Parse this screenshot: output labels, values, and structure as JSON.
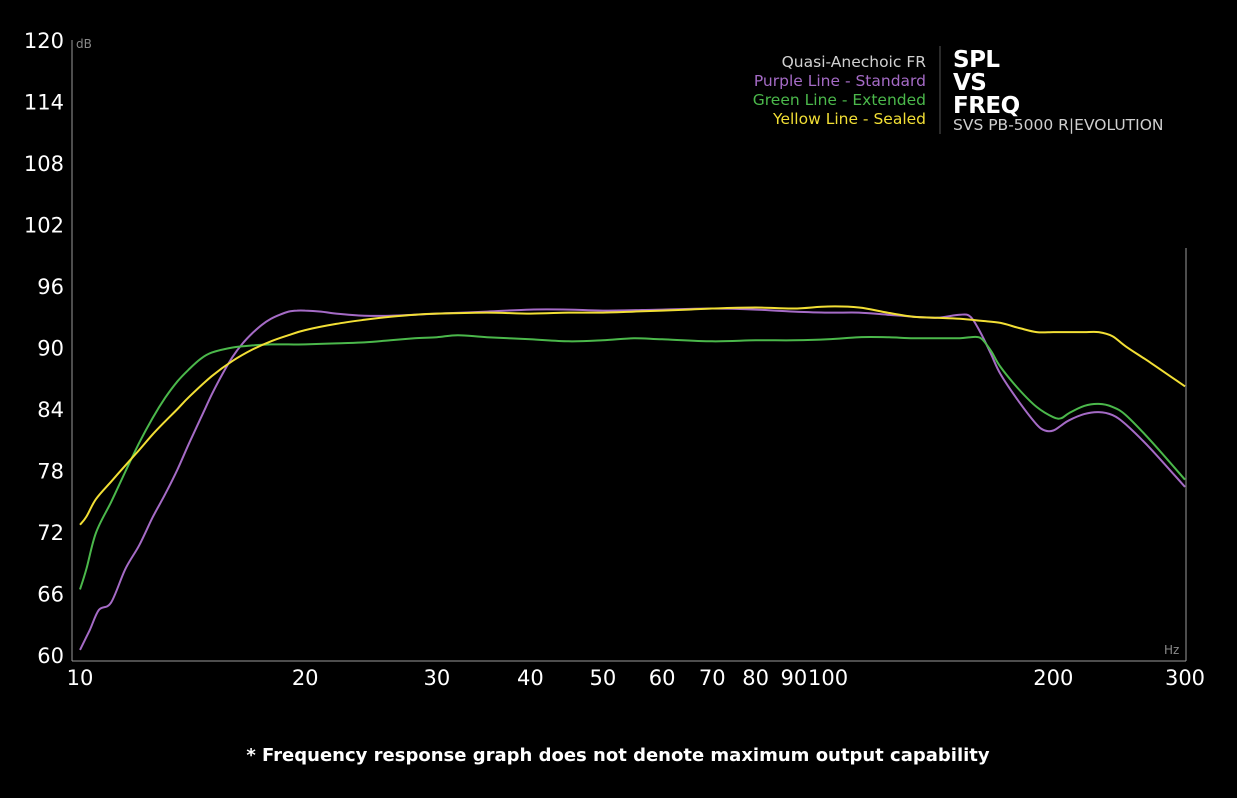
{
  "chart_data": {
    "type": "line",
    "title_lines": [
      "SPL",
      "VS",
      "FREQ"
    ],
    "subtitle": "SVS PB-5000 R|EVOLUTION",
    "legend_heading": "Quasi-Anechoic FR",
    "xlabel": "Hz",
    "ylabel": "dB",
    "x_scale": "log",
    "xlim": [
      10,
      300
    ],
    "ylim": [
      60,
      120
    ],
    "x_ticks": [
      10,
      20,
      30,
      40,
      50,
      60,
      70,
      80,
      90,
      100,
      200,
      300
    ],
    "x_tick_labels": [
      "10",
      "20",
      "30",
      "40",
      "50",
      "60",
      "70",
      "80",
      "90",
      "100",
      "200",
      "300"
    ],
    "y_ticks": [
      60,
      66,
      72,
      78,
      84,
      90,
      96,
      102,
      108,
      114,
      120
    ],
    "y_tick_labels": [
      "60",
      "66",
      "72",
      "78",
      "84",
      "90",
      "96",
      "102",
      "108",
      "114",
      "120"
    ],
    "grid": false,
    "legend_position": "top-right",
    "series": [
      {
        "name": "Purple Line - Standard",
        "color": "#a56bc6",
        "x": [
          10,
          10.3,
          10.6,
          11,
          11.5,
          12,
          12.5,
          13,
          13.5,
          14,
          14.5,
          15,
          15.5,
          16,
          16.5,
          17,
          17.5,
          18,
          18.5,
          19,
          19.5,
          20,
          21,
          22,
          24,
          26,
          28,
          30,
          35,
          40,
          45,
          50,
          60,
          70,
          80,
          90,
          100,
          110,
          120,
          130,
          140,
          150,
          155,
          160,
          165,
          170,
          180,
          190,
          195,
          200,
          205,
          210,
          220,
          230,
          240,
          250,
          270,
          300
        ],
        "values": [
          60.6,
          62.5,
          64.5,
          65.2,
          68.5,
          70.8,
          73.5,
          75.8,
          78.2,
          80.8,
          83.2,
          85.5,
          87.5,
          89.2,
          90.5,
          91.5,
          92.3,
          92.9,
          93.3,
          93.6,
          93.7,
          93.7,
          93.6,
          93.4,
          93.2,
          93.2,
          93.3,
          93.4,
          93.6,
          93.8,
          93.8,
          93.7,
          93.8,
          93.9,
          93.8,
          93.6,
          93.5,
          93.5,
          93.3,
          93.1,
          93.0,
          93.3,
          93.1,
          91.5,
          89.5,
          87.5,
          84.8,
          82.6,
          82.0,
          82.0,
          82.5,
          83.0,
          83.6,
          83.8,
          83.5,
          82.6,
          80.2,
          76.5
        ]
      },
      {
        "name": "Green Line - Extended",
        "color": "#4bb84b",
        "x": [
          10,
          10.2,
          10.5,
          11,
          11.5,
          12,
          12.5,
          13,
          13.5,
          14,
          14.5,
          15,
          16,
          17,
          18,
          19,
          20,
          22,
          24,
          26,
          28,
          30,
          32,
          35,
          40,
          45,
          50,
          55,
          60,
          70,
          80,
          90,
          100,
          110,
          120,
          130,
          140,
          150,
          155,
          160,
          165,
          170,
          180,
          190,
          200,
          205,
          210,
          220,
          230,
          240,
          250,
          270,
          300
        ],
        "values": [
          66.5,
          68.5,
          72.0,
          75.0,
          78.0,
          80.8,
          83.2,
          85.2,
          86.8,
          88.0,
          89.0,
          89.6,
          90.1,
          90.3,
          90.4,
          90.4,
          90.4,
          90.5,
          90.6,
          90.8,
          91.0,
          91.1,
          91.3,
          91.1,
          90.9,
          90.7,
          90.8,
          91.0,
          90.9,
          90.7,
          90.8,
          90.8,
          90.9,
          91.1,
          91.1,
          91.0,
          91.0,
          91.0,
          91.1,
          91.0,
          89.8,
          88.2,
          86.0,
          84.3,
          83.3,
          83.2,
          83.7,
          84.4,
          84.6,
          84.3,
          83.5,
          81.0,
          77.2
        ]
      },
      {
        "name": "Yellow Line - Sealed",
        "color": "#f2df35",
        "x": [
          10,
          10.2,
          10.5,
          11,
          11.5,
          12,
          12.5,
          13,
          13.5,
          14,
          15,
          16,
          17,
          18,
          19,
          20,
          22,
          24,
          26,
          28,
          30,
          35,
          40,
          45,
          50,
          55,
          60,
          65,
          70,
          80,
          90,
          100,
          110,
          120,
          130,
          140,
          150,
          160,
          170,
          180,
          190,
          200,
          210,
          220,
          230,
          240,
          250,
          270,
          300
        ],
        "values": [
          72.8,
          73.6,
          75.3,
          77.0,
          78.6,
          80.1,
          81.6,
          82.9,
          84.1,
          85.3,
          87.3,
          88.8,
          89.9,
          90.7,
          91.3,
          91.8,
          92.4,
          92.8,
          93.1,
          93.3,
          93.4,
          93.5,
          93.4,
          93.5,
          93.5,
          93.6,
          93.7,
          93.8,
          93.9,
          94.0,
          93.9,
          94.1,
          94.0,
          93.5,
          93.1,
          93.0,
          92.9,
          92.7,
          92.5,
          92.0,
          91.6,
          91.6,
          91.6,
          91.6,
          91.6,
          91.2,
          90.2,
          88.6,
          86.3
        ]
      }
    ],
    "footnote": "* Frequency response graph does not denote maximum output capability"
  }
}
